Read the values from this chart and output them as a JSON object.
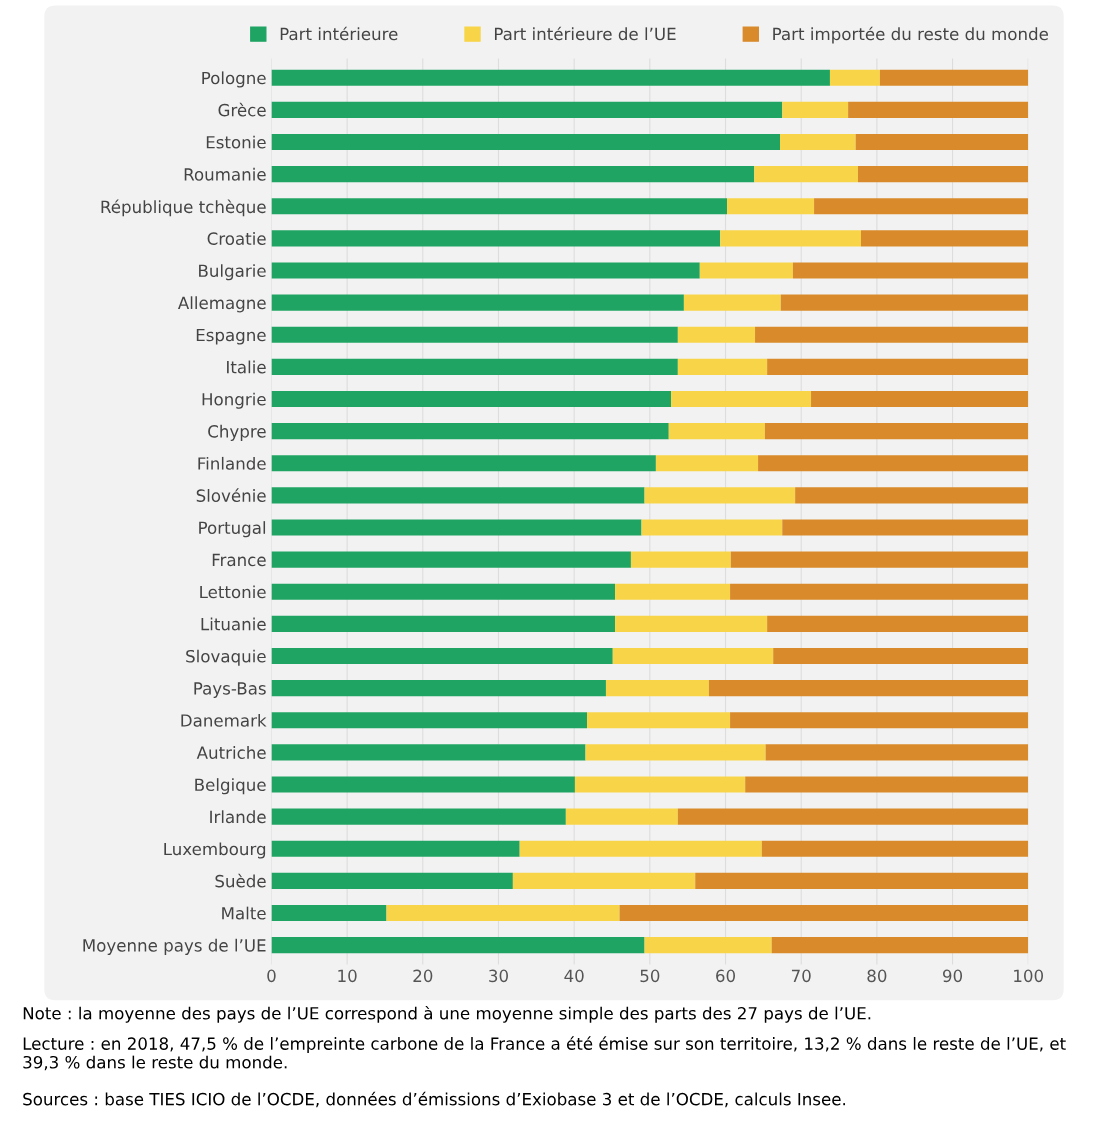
{
  "chart_data": {
    "type": "bar",
    "orientation": "horizontal",
    "stacked": true,
    "categories": [
      "Pologne",
      "Grèce",
      "Estonie",
      "Roumanie",
      "République tchèque",
      "Croatie",
      "Bulgarie",
      "Allemagne",
      "Espagne",
      "Italie",
      "Hongrie",
      "Chypre",
      "Finlande",
      "Slovénie",
      "Portugal",
      "France",
      "Lettonie",
      "Lituanie",
      "Slovaquie",
      "Pays-Bas",
      "Danemark",
      "Autriche",
      "Belgique",
      "Irlande",
      "Luxembourg",
      "Suède",
      "Malte",
      "Moyenne pays de l’UE"
    ],
    "series": [
      {
        "name": "Part intérieure",
        "color": "#1fa463",
        "values": [
          73.8,
          67.5,
          67.2,
          63.8,
          60.2,
          59.3,
          56.6,
          54.5,
          53.7,
          53.7,
          52.8,
          52.5,
          50.8,
          49.3,
          48.9,
          47.5,
          45.4,
          45.4,
          45.1,
          44.2,
          41.7,
          41.5,
          40.1,
          38.9,
          32.8,
          31.9,
          15.2,
          49.3
        ]
      },
      {
        "name": "Part intérieure de l’UE",
        "color": "#f8d548",
        "values": [
          6.6,
          8.7,
          10.0,
          13.7,
          11.5,
          18.6,
          12.3,
          12.8,
          10.2,
          11.8,
          18.5,
          12.7,
          13.5,
          19.9,
          18.6,
          13.2,
          15.2,
          20.1,
          21.2,
          13.6,
          18.9,
          23.8,
          22.5,
          14.8,
          32.0,
          24.1,
          30.8,
          16.8
        ]
      },
      {
        "name": "Part importée du reste du monde",
        "color": "#d98b2b",
        "values": [
          19.6,
          23.8,
          22.8,
          22.5,
          28.3,
          22.1,
          31.1,
          32.7,
          36.1,
          34.5,
          28.7,
          34.8,
          35.7,
          30.8,
          32.5,
          39.3,
          39.4,
          34.5,
          33.7,
          42.2,
          39.4,
          34.7,
          37.4,
          46.3,
          35.2,
          44.0,
          54.0,
          33.9
        ]
      }
    ],
    "xlim": [
      0,
      100
    ],
    "xticks": [
      0,
      10,
      20,
      30,
      40,
      50,
      60,
      70,
      80,
      90,
      100
    ],
    "grid": "x",
    "legend": "top",
    "annotations": [
      "Note : la moyenne des pays de l’UE correspond à une moyenne simple des parts des 27 pays de l’UE.",
      "Lecture : en 2018, 47,5 % de l’empreinte carbone de la France a été émise sur son territoire, 13,2 % dans le reste de l’UE, et 39,3 % dans le reste du monde.",
      "Sources : base TIES ICIO de l’OCDE, données d’émissions d’Exiobase 3 et de l’OCDE, calculs Insee."
    ]
  }
}
